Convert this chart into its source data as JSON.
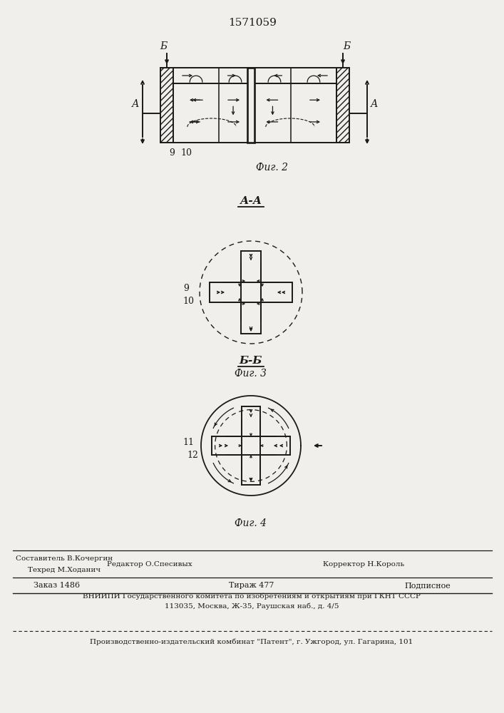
{
  "patent_number": "1571059",
  "fig2_label": "Фиг. 2",
  "fig3_label": "Фиг. 3",
  "fig4_label": "Фиг. 4",
  "section_aa": "А-А",
  "section_bb": "Б-Б",
  "label_9": "9",
  "label_10": "10",
  "label_11": "11",
  "label_12": "12",
  "label_A": "А",
  "label_B": "Б",
  "footer_editor": "Редактор О.Спесивых",
  "footer_comp": "Составитель В.Кочергин",
  "footer_tech": "Техред М.Ходанич",
  "footer_corr": "Корректор Н.Король",
  "footer_order": "Заказ 1486",
  "footer_print": "Тираж 477",
  "footer_sign": "Подписное",
  "footer_vniip1": "ВНИИПИ Государственного комитета по изобретениям и открытиям при ГКНТ СССР",
  "footer_vniip2": "113035, Москва, Ж-35, Раушская наб., д. 4/5",
  "footer_prod": "Производственно-издательский комбинат \"Патент\", г. Ужгород, ул. Гагарина, 101",
  "bg_color": "#f0efeb",
  "line_color": "#1a1a1a"
}
